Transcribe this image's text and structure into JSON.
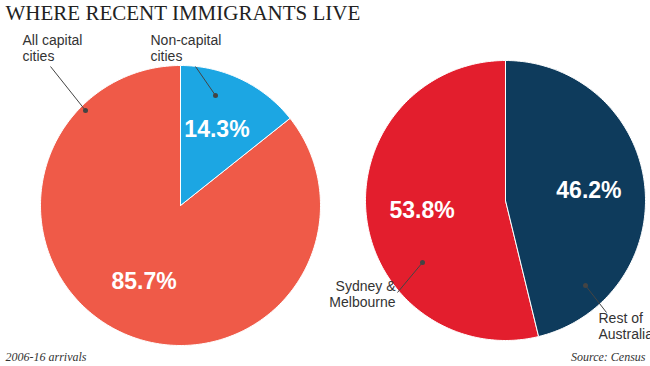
{
  "chart_data": [
    {
      "type": "pie",
      "title": "WHERE RECENT IMMIGRANTS LIVE",
      "categories": [
        "All capital cities",
        "Non-capital cities"
      ],
      "values": [
        85.7,
        14.3
      ],
      "value_labels": [
        "85.7%",
        "14.3%"
      ],
      "colors": [
        "#ef5a48",
        "#1ca6e3"
      ],
      "data_labels": true,
      "annotations": [
        "2006-16 arrivals"
      ]
    },
    {
      "type": "pie",
      "categories": [
        "Sydney & Melbourne",
        "Rest of Australia"
      ],
      "values": [
        53.8,
        46.2
      ],
      "value_labels": [
        "53.8%",
        "46.2%"
      ],
      "colors": [
        "#e31e2d",
        "#0e3b5c"
      ],
      "data_labels": true,
      "annotations": [
        "Source: Census"
      ]
    }
  ]
}
